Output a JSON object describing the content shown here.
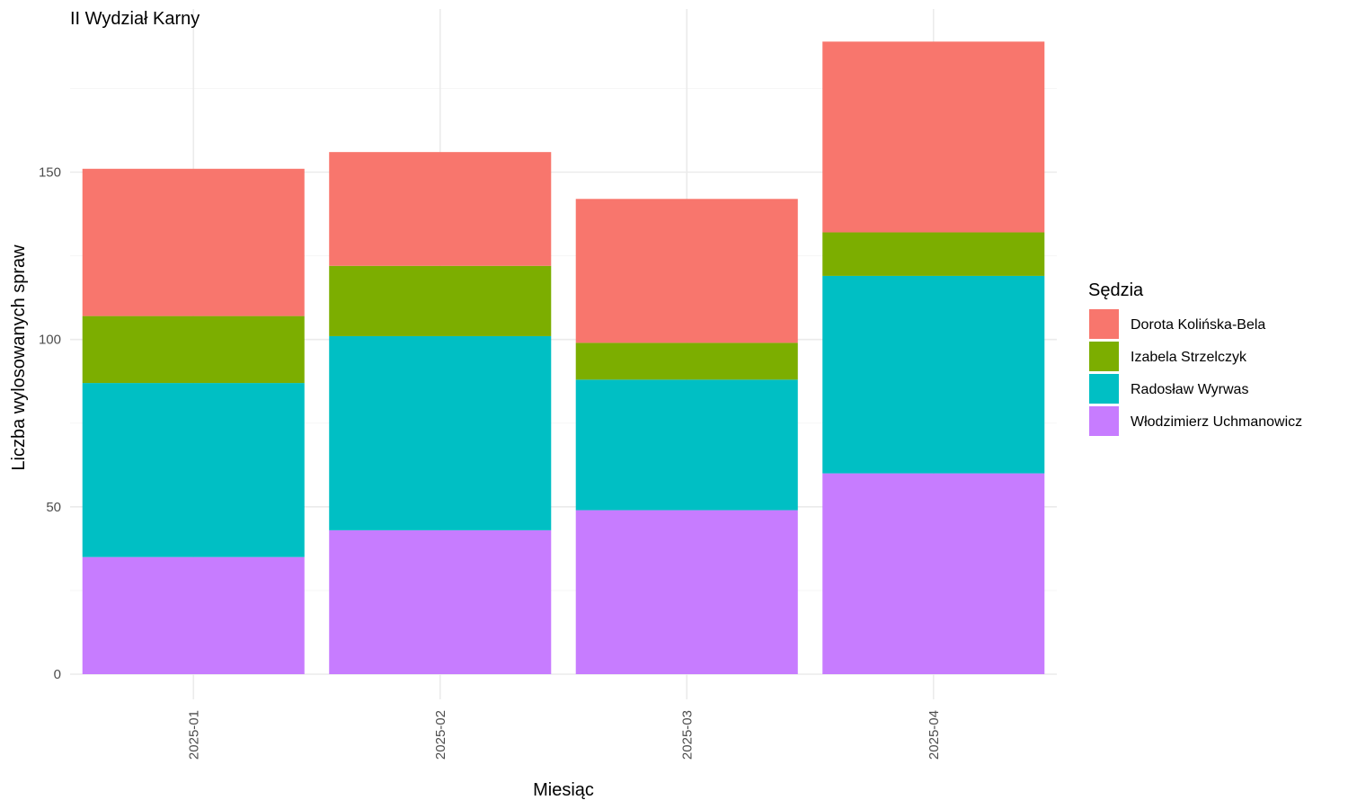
{
  "chart_data": {
    "type": "bar",
    "stacked": true,
    "title": "II Wydział Karny",
    "xlabel": "Miesiąc",
    "ylabel": "Liczba wylosowanych spraw",
    "categories": [
      "2025-01",
      "2025-02",
      "2025-03",
      "2025-04"
    ],
    "ylim": [
      0,
      190
    ],
    "yticks": [
      0,
      50,
      100,
      150
    ],
    "grid": true,
    "legend": {
      "title": "Sędzia",
      "position": "right"
    },
    "series": [
      {
        "name": "Włodzimierz Uchmanowicz",
        "color": "#C77CFF",
        "values": [
          35,
          43,
          49,
          60
        ]
      },
      {
        "name": "Radosław Wyrwas",
        "color": "#00BFC4",
        "values": [
          52,
          58,
          39,
          59
        ]
      },
      {
        "name": "Izabela Strzelczyk",
        "color": "#7CAE00",
        "values": [
          20,
          21,
          11,
          13
        ]
      },
      {
        "name": "Dorota Kolińska-Bela",
        "color": "#F8766D",
        "values": [
          44,
          34,
          43,
          57
        ]
      }
    ],
    "legend_order": [
      "Dorota Kolińska-Bela",
      "Izabela Strzelczyk",
      "Radosław Wyrwas",
      "Włodzimierz Uchmanowicz"
    ]
  }
}
